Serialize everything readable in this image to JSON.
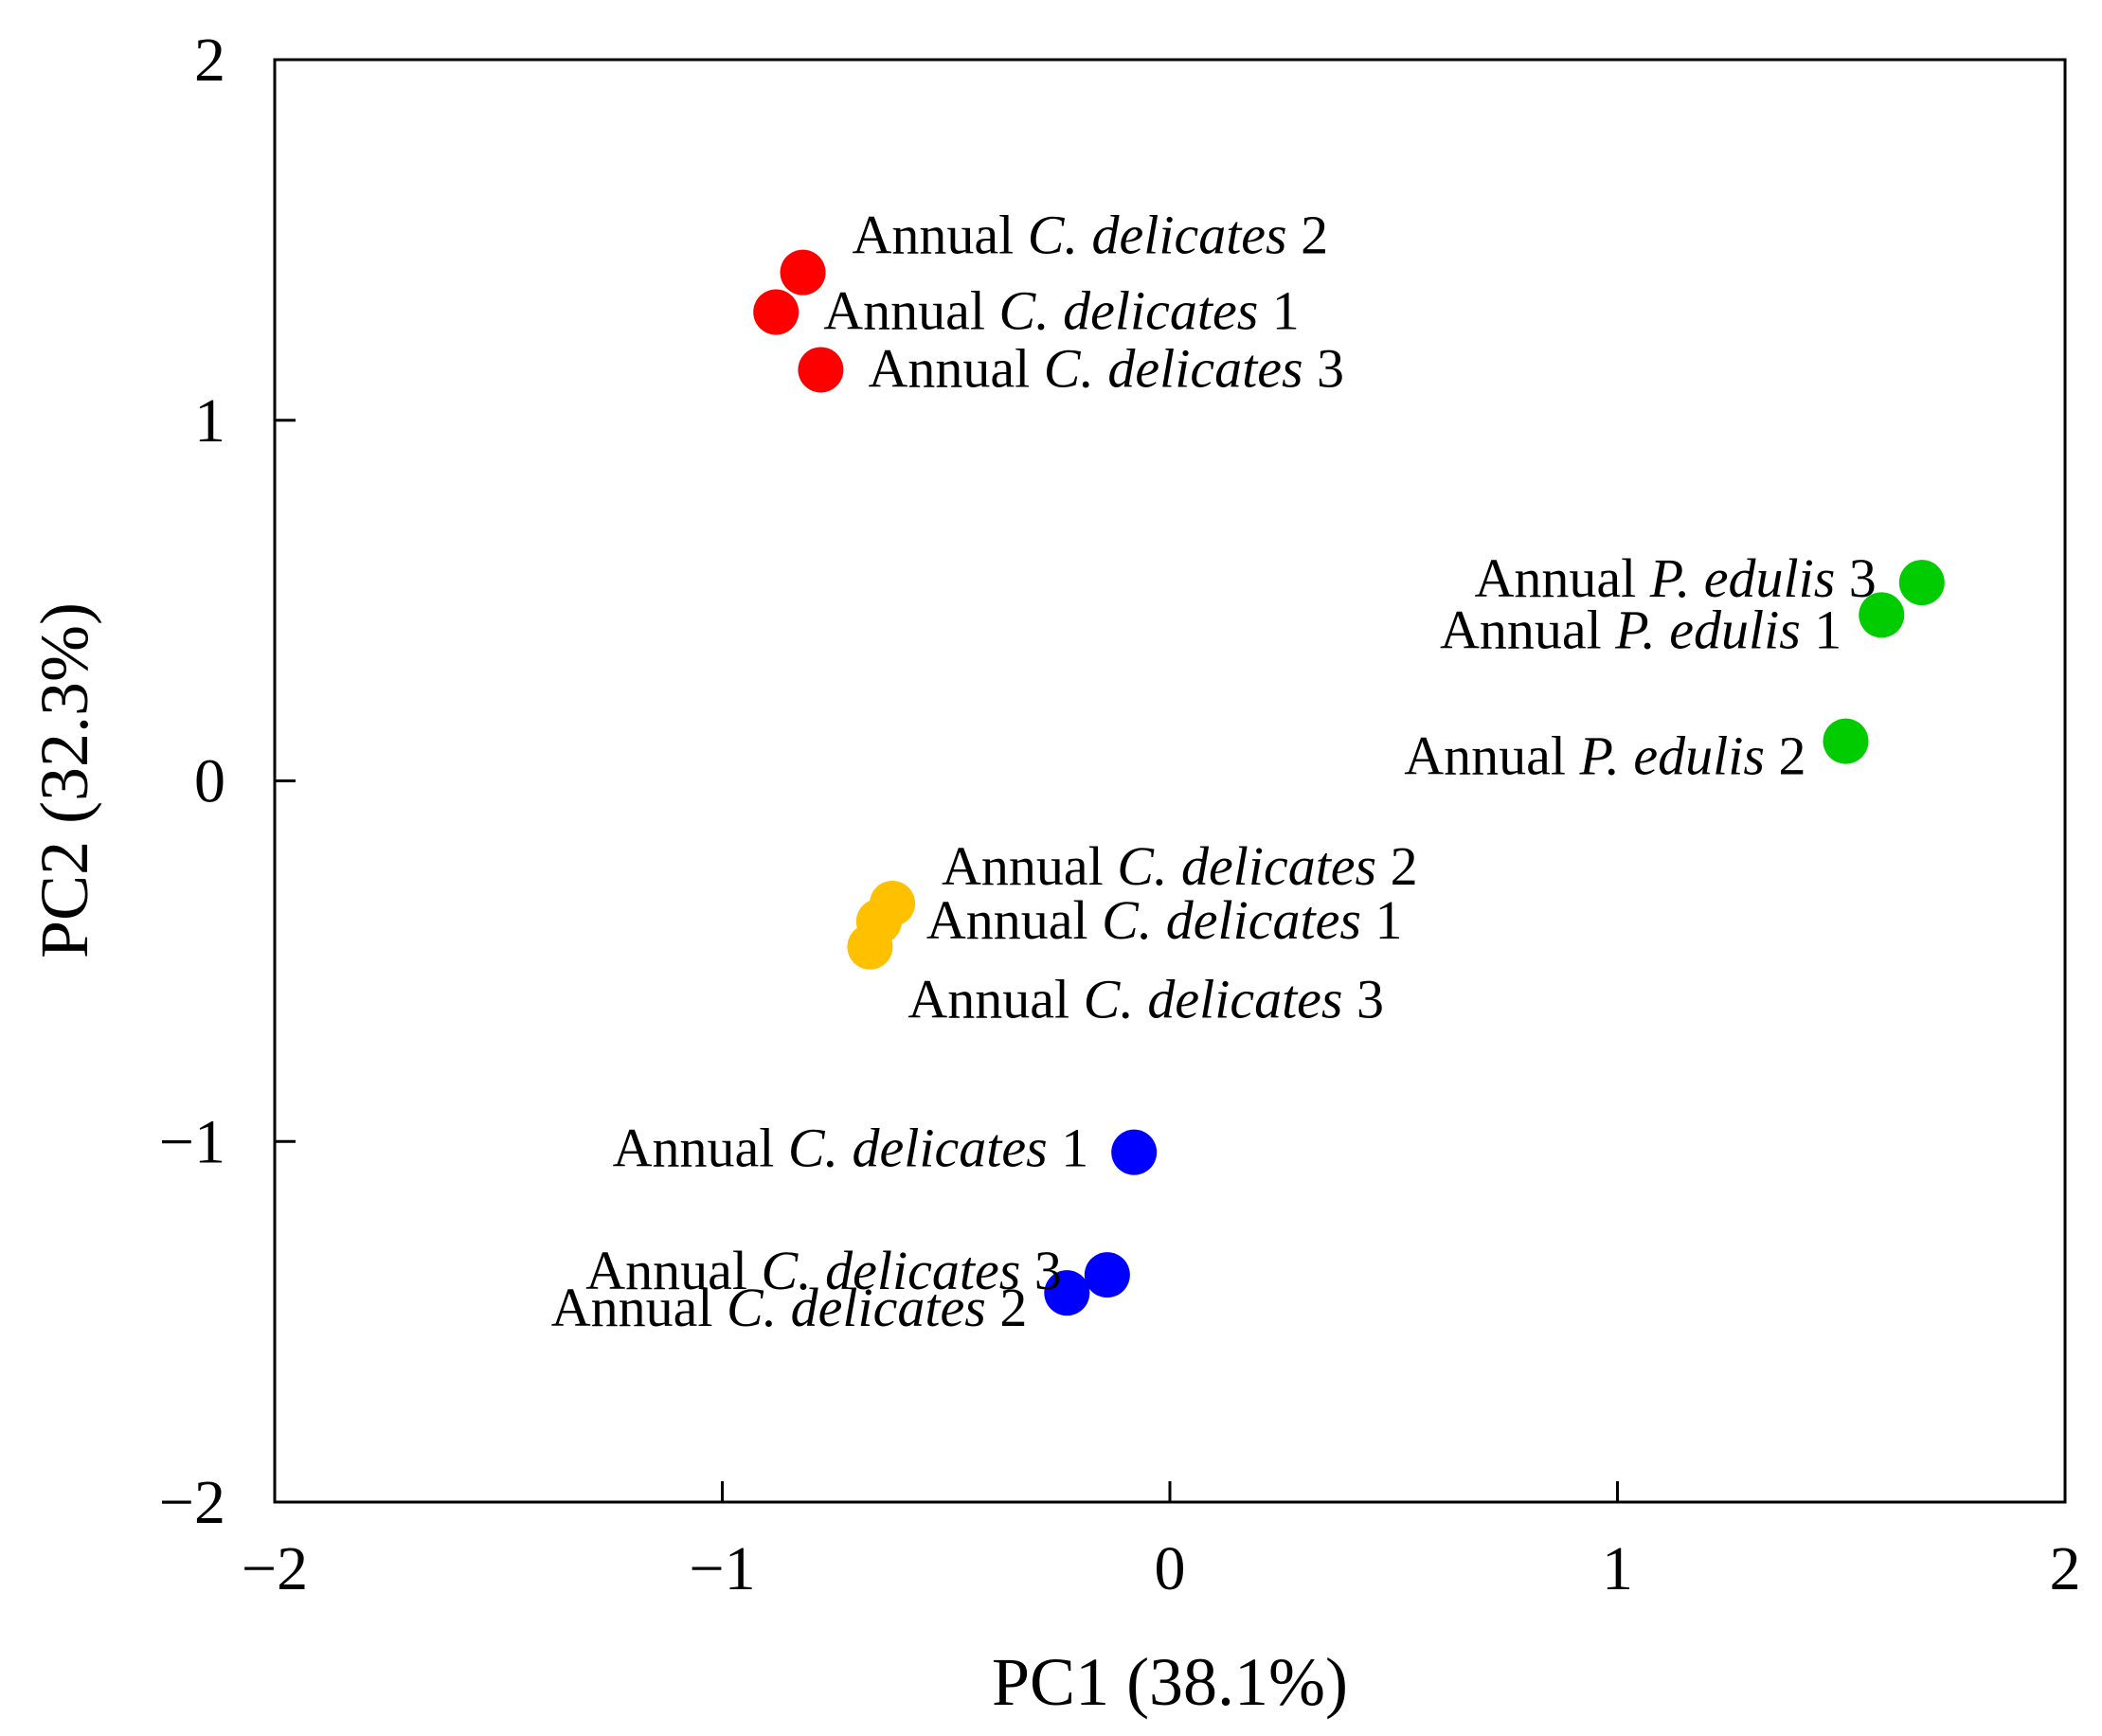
{
  "chart_data": {
    "type": "scatter",
    "title": "",
    "xlabel": "PC1 (38.1%)",
    "ylabel": "PC2 (32.3%)",
    "xlim": [
      -2,
      2
    ],
    "ylim": [
      -2,
      2
    ],
    "x_ticks": [
      -2,
      -1,
      0,
      1,
      2
    ],
    "y_ticks": [
      -2,
      -1,
      0,
      1,
      2
    ],
    "x_tick_labels": [
      "−2",
      "−1",
      "0",
      "1",
      "2"
    ],
    "y_tick_labels": [
      "−2",
      "−1",
      "0",
      "1",
      "2"
    ],
    "grid": false,
    "legend": "none",
    "series": [
      {
        "name": "red group",
        "color": "#ff0000",
        "points": [
          {
            "x": -0.82,
            "y": 1.41,
            "label": {
              "pre": "Annual ",
              "italic": "C. delicates",
              "post": " 2"
            },
            "label_side": "right-up"
          },
          {
            "x": -0.88,
            "y": 1.3,
            "label": {
              "pre": "Annual ",
              "italic": "C. delicates",
              "post": " 1"
            },
            "label_side": "right"
          },
          {
            "x": -0.78,
            "y": 1.14,
            "label": {
              "pre": "Annual ",
              "italic": "C. delicates",
              "post": " 3"
            },
            "label_side": "right"
          }
        ]
      },
      {
        "name": "green group",
        "color": "#00cc00",
        "points": [
          {
            "x": 1.68,
            "y": 0.55,
            "label": {
              "pre": "Annual ",
              "italic": "P. edulis",
              "post": " 3"
            },
            "label_side": "left-up"
          },
          {
            "x": 1.59,
            "y": 0.46,
            "label": {
              "pre": "Annual ",
              "italic": "P. edulis",
              "post": " 1"
            },
            "label_side": "left"
          },
          {
            "x": 1.51,
            "y": 0.11,
            "label": {
              "pre": "Annual ",
              "italic": "P. edulis",
              "post": " 2"
            },
            "label_side": "left"
          }
        ]
      },
      {
        "name": "yellow group",
        "color": "#ffc000",
        "points": [
          {
            "x": -0.62,
            "y": -0.34,
            "label": {
              "pre": "Annual ",
              "italic": "C. delicates",
              "post": " 2"
            },
            "label_side": "right-up"
          },
          {
            "x": -0.65,
            "y": -0.39,
            "label": {
              "pre": "Annual ",
              "italic": "C. delicates",
              "post": " 1"
            },
            "label_side": "right"
          },
          {
            "x": -0.67,
            "y": -0.46,
            "label": {
              "pre": "Annual ",
              "italic": "C. delicates",
              "post": " 3"
            },
            "label_side": "right-down"
          }
        ]
      },
      {
        "name": "blue group",
        "color": "#0000ff",
        "points": [
          {
            "x": -0.08,
            "y": -1.03,
            "label": {
              "pre": "Annual ",
              "italic": "C. delicates",
              "post": " 1"
            },
            "label_side": "left-up"
          },
          {
            "x": -0.14,
            "y": -1.37,
            "label": {
              "pre": "Annual ",
              "italic": "C. delicates",
              "post": " 3"
            },
            "label_side": "left-up"
          },
          {
            "x": -0.23,
            "y": -1.42,
            "label": {
              "pre": "Annual ",
              "italic": "C. delicates",
              "post": " 2"
            },
            "label_side": "left"
          }
        ]
      }
    ]
  }
}
